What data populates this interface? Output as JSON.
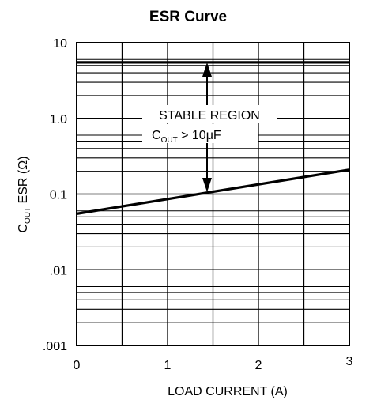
{
  "chart_data": {
    "type": "line",
    "title": "ESR Curve",
    "xlabel": "LOAD CURRENT (A)",
    "ylabel": {
      "prefix": "C",
      "subscript": "OUT",
      "suffix": " ESR (Ω)"
    },
    "x_ticks": [
      "0",
      "1",
      "2",
      "3"
    ],
    "y_ticks": [
      "10",
      "1.0",
      "0.1",
      ".01",
      ".001"
    ],
    "xlim": [
      0,
      3
    ],
    "ylim": [
      0.001,
      10
    ],
    "y_scale": "log",
    "grid": true,
    "series": [
      {
        "values": [
          [
            0,
            5.5
          ],
          [
            3,
            5.5
          ]
        ]
      },
      {
        "values": [
          [
            0,
            0.055
          ],
          [
            3,
            0.21
          ]
        ]
      }
    ],
    "annotations": {
      "line1": "STABLE REGION",
      "line2_prefix": "C",
      "line2_subscript": "OUT",
      "line2_suffix": " > 10μF"
    }
  }
}
